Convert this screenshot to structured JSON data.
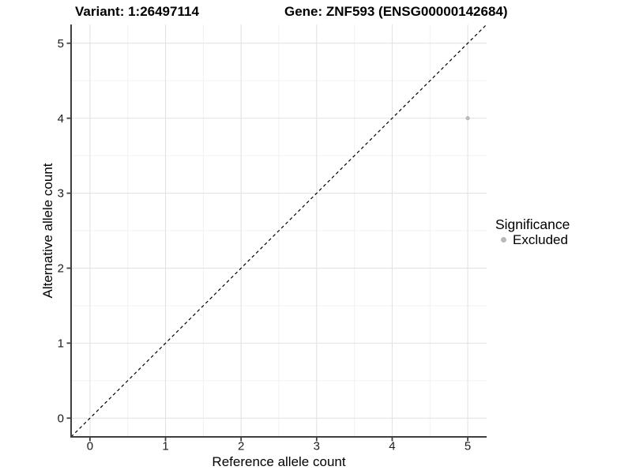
{
  "header": {
    "variant_title": "Variant: 1:26497114",
    "gene_title": "Gene: ZNF593 (ENSG00000142684)"
  },
  "chart_data": {
    "type": "scatter",
    "title": "Variant: 1:26497114   Gene: ZNF593 (ENSG00000142684)",
    "xlabel": "Reference allele count",
    "ylabel": "Alternative allele count",
    "xlim": [
      -0.25,
      5.25
    ],
    "ylim": [
      -0.25,
      5.25
    ],
    "x_ticks": [
      0,
      1,
      2,
      3,
      4,
      5
    ],
    "y_ticks": [
      0,
      1,
      2,
      3,
      4,
      5
    ],
    "x_minor": [
      0.5,
      1.5,
      2.5,
      3.5,
      4.5
    ],
    "y_minor": [
      0.5,
      1.5,
      2.5,
      3.5,
      4.5
    ],
    "grid": "major+minor",
    "identity_line": {
      "slope": 1,
      "intercept": 0,
      "style": "dashed",
      "color": "#000000"
    },
    "points": [
      {
        "x": 5,
        "y": 4,
        "significance": "Excluded",
        "color": "#b9b9b9",
        "radius": 2.6
      }
    ],
    "legend": {
      "title": "Significance",
      "position": "right",
      "entries": [
        {
          "label": "Excluded",
          "color": "#b9b9b9"
        }
      ]
    }
  },
  "style_colors": {
    "background": "#ffffff",
    "grid_major": "#e3e3e3",
    "grid_minor": "#f1f1f1",
    "axis_line": "#404040",
    "tick_mark": "#404040",
    "tick_text": "#1a1a1a"
  }
}
